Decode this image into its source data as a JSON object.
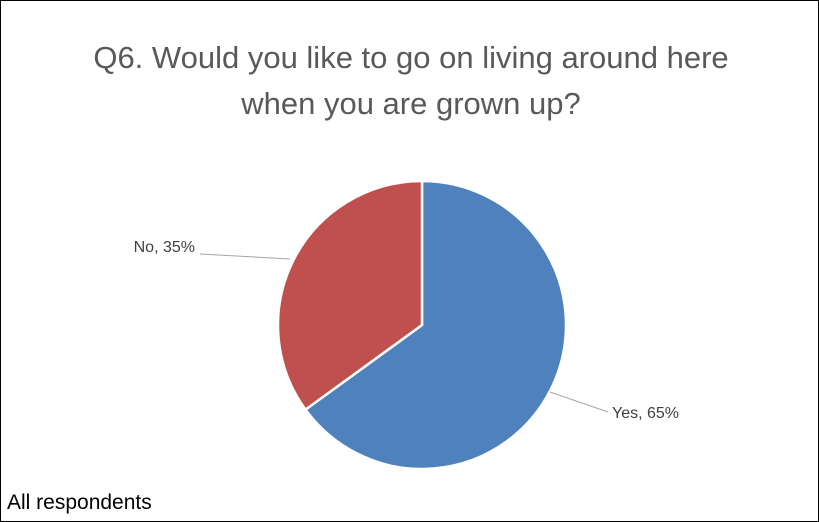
{
  "chart_data": {
    "type": "pie",
    "title": "Q6. Would you like to go on living around here when you are grown up?",
    "categories": [
      "Yes",
      "No"
    ],
    "values": [
      65,
      35
    ],
    "colors": [
      "#4f81bd",
      "#c0504d"
    ],
    "data_labels": [
      "Yes, 65%",
      "No, 35%"
    ],
    "legend": "none"
  },
  "footnote": "All respondents"
}
